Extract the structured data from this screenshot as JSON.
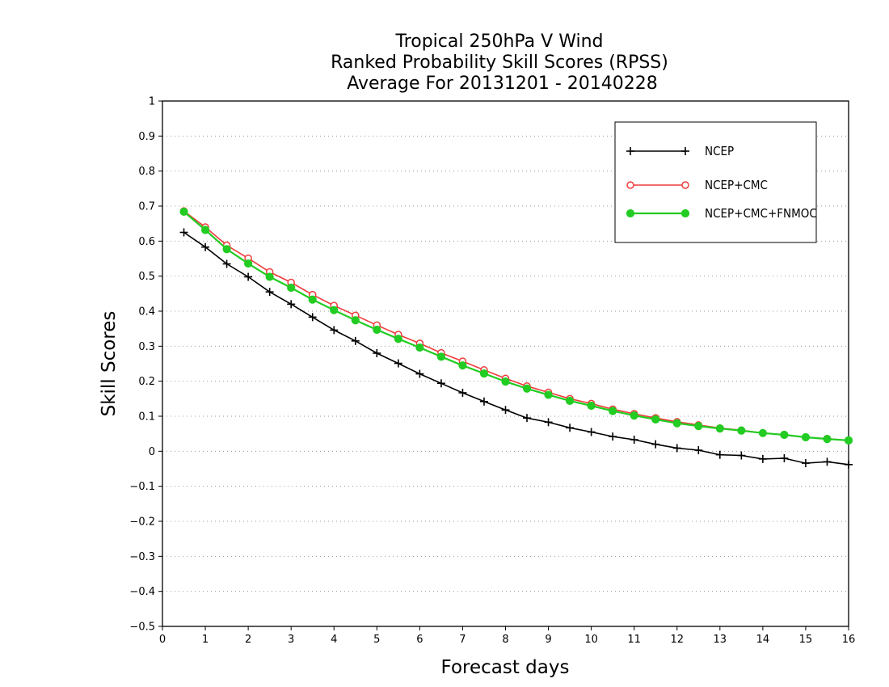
{
  "chart_data": {
    "type": "line",
    "title": [
      "Tropical 250hPa V Wind",
      "Ranked Probability Skill Scores (RPSS)",
      " Average For 20131201 - 20140228"
    ],
    "xlabel": "Forecast days",
    "ylabel": "Skill Scores",
    "xlim": [
      0,
      16
    ],
    "ylim": [
      -0.5,
      1
    ],
    "xticks": [
      0,
      1,
      2,
      3,
      4,
      5,
      6,
      7,
      8,
      9,
      10,
      11,
      12,
      13,
      14,
      15,
      16
    ],
    "yticks": [
      -0.5,
      -0.4,
      -0.3,
      -0.2,
      -0.1,
      0,
      0.1,
      0.2,
      0.3,
      0.4,
      0.5,
      0.6,
      0.7,
      0.8,
      0.9,
      1
    ],
    "grid": true,
    "legend_position": "top-right",
    "x": [
      0.5,
      1,
      1.5,
      2,
      2.5,
      3,
      3.5,
      4,
      4.5,
      5,
      5.5,
      6,
      6.5,
      7,
      7.5,
      8,
      8.5,
      9,
      9.5,
      10,
      10.5,
      11,
      11.5,
      12,
      12.5,
      13,
      13.5,
      14,
      14.5,
      15,
      15.5,
      16
    ],
    "series": [
      {
        "name": "NCEP",
        "color": "#000000",
        "marker": "plus",
        "values": [
          0.625,
          0.583,
          0.535,
          0.498,
          0.455,
          0.42,
          0.383,
          0.346,
          0.315,
          0.28,
          0.251,
          0.221,
          0.194,
          0.167,
          0.142,
          0.118,
          0.095,
          0.083,
          0.067,
          0.055,
          0.042,
          0.033,
          0.02,
          0.009,
          0.003,
          -0.01,
          -0.012,
          -0.022,
          -0.02,
          -0.034,
          -0.03,
          -0.038
        ]
      },
      {
        "name": "NCEP+CMC",
        "color": "#ee3b3b",
        "marker": "open-circle",
        "values": [
          0.686,
          0.64,
          0.588,
          0.551,
          0.512,
          0.482,
          0.447,
          0.416,
          0.388,
          0.36,
          0.333,
          0.308,
          0.281,
          0.257,
          0.232,
          0.208,
          0.186,
          0.168,
          0.15,
          0.136,
          0.12,
          0.107,
          0.095,
          0.084,
          0.075,
          0.066,
          0.06,
          0.052,
          0.047,
          0.04,
          0.036,
          0.031
        ]
      },
      {
        "name": "NCEP+CMC+FNMOC",
        "color": "#22cc22",
        "marker": "filled-circle",
        "values": [
          0.684,
          0.632,
          0.577,
          0.536,
          0.498,
          0.467,
          0.433,
          0.403,
          0.374,
          0.347,
          0.321,
          0.296,
          0.27,
          0.245,
          0.222,
          0.199,
          0.179,
          0.161,
          0.144,
          0.13,
          0.115,
          0.102,
          0.091,
          0.08,
          0.072,
          0.065,
          0.059,
          0.052,
          0.047,
          0.04,
          0.035,
          0.031
        ]
      }
    ]
  }
}
